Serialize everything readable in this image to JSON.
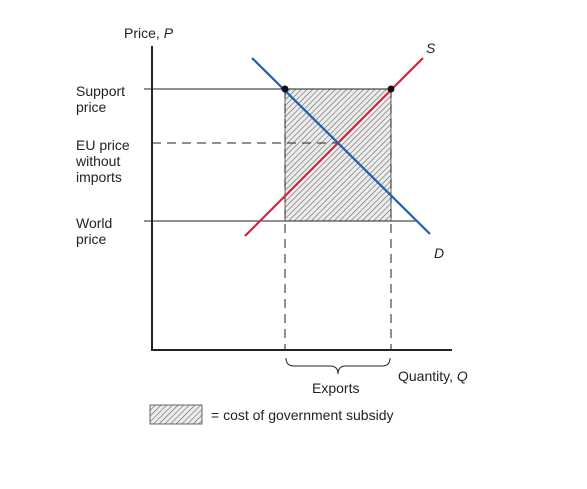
{
  "diagram": {
    "y_axis_label": "Price, ",
    "y_axis_symbol": "P",
    "x_axis_label": "Quantity, ",
    "x_axis_symbol": "Q",
    "support_price_label": [
      "Support",
      "price"
    ],
    "eu_price_label": [
      "EU price",
      "without",
      "imports"
    ],
    "world_price_label": [
      "World",
      "price"
    ],
    "supply_label": "S",
    "demand_label": "D",
    "exports_label": "Exports",
    "legend_text": "= cost of government subsidy",
    "colors": {
      "supply": "#d6223a",
      "demand": "#1f5fae",
      "axis": "#222222",
      "hatch": "#555555"
    }
  }
}
